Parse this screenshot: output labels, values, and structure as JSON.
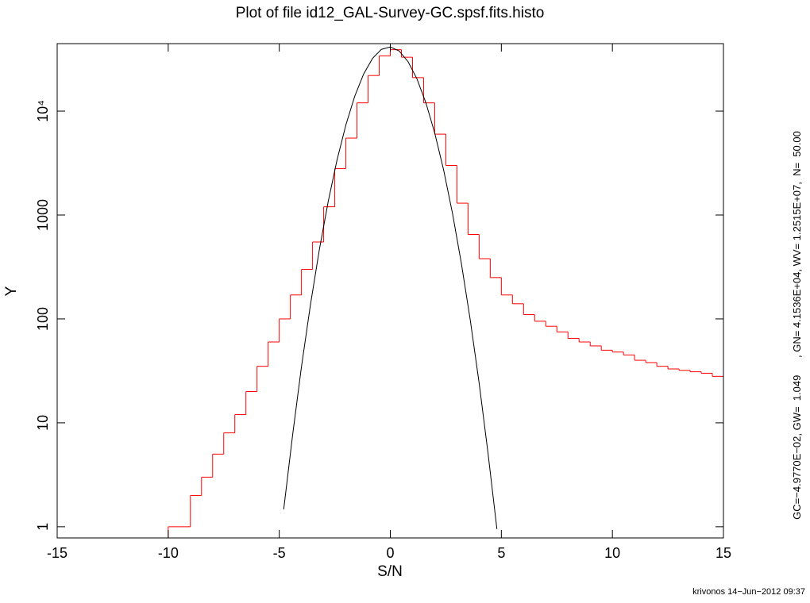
{
  "chart_data": {
    "type": "histogram",
    "title": "Plot of file id12_GAL-Survey-GC.spsf.fits.histo",
    "xlabel": "S/N",
    "ylabel": "Y",
    "annotation": "GC=−4.9770E−02, GW=  1.049      , GN= 4.1536E+04, WV= 1.2515E+07,  N=  50.00",
    "footer": "krivonos 14−Jun−2012 09:37",
    "ylog": true,
    "xlim": [
      -15,
      15
    ],
    "ylim": [
      0.78,
      44600
    ],
    "xticks": [
      -15,
      -10,
      -5,
      0,
      5,
      10,
      15
    ],
    "yticks": [
      1,
      10,
      100,
      1000,
      {
        "value": 10000,
        "label": "10⁴"
      }
    ],
    "color": "#ff0000",
    "bins": [
      -10,
      -9.5,
      -9,
      -8.5,
      -8,
      -7.5,
      -7,
      -6.5,
      -6,
      -5.5,
      -5,
      -4.5,
      -4,
      -3.5,
      -3,
      -2.5,
      -2,
      -1.5,
      -1,
      -0.5,
      0,
      0.5,
      1,
      1.5,
      2,
      2.5,
      3,
      3.5,
      4,
      4.5,
      5,
      5.5,
      6,
      6.5,
      7,
      7.5,
      8,
      8.5,
      9,
      9.5,
      10,
      10.5,
      11,
      11.5,
      12,
      12.5,
      13,
      13.5,
      14,
      14.5,
      15
    ],
    "values": [
      1,
      1,
      2,
      3,
      5,
      8,
      12,
      20,
      35,
      60,
      100,
      170,
      300,
      550,
      1200,
      2800,
      5500,
      12000,
      22000,
      34000,
      39000,
      33000,
      21000,
      12000,
      6000,
      3000,
      1300,
      650,
      380,
      250,
      170,
      140,
      110,
      95,
      85,
      75,
      65,
      60,
      55,
      50,
      48,
      45,
      40,
      38,
      35,
      33,
      32,
      31,
      30,
      28
    ],
    "curve": {
      "type": "line",
      "color": "#000000",
      "x": [
        -4.8,
        -4.4,
        -4,
        -3.6,
        -3.2,
        -2.8,
        -2.4,
        -2,
        -1.6,
        -1.2,
        -0.8,
        -0.4,
        0,
        0.4,
        0.8,
        1.2,
        1.6,
        2,
        2.4,
        2.8,
        3.2,
        3.6,
        4,
        4.4,
        4.8
      ],
      "values": [
        1.47,
        7.6,
        34.7,
        135,
        458,
        1337,
        3377,
        7377,
        13944,
        22774,
        32170,
        39290,
        41489,
        37880,
        29910,
        20419,
        12054,
        6152,
        2716,
        1037,
        342,
        97.7,
        24.1,
        5.1,
        0.95
      ]
    }
  }
}
